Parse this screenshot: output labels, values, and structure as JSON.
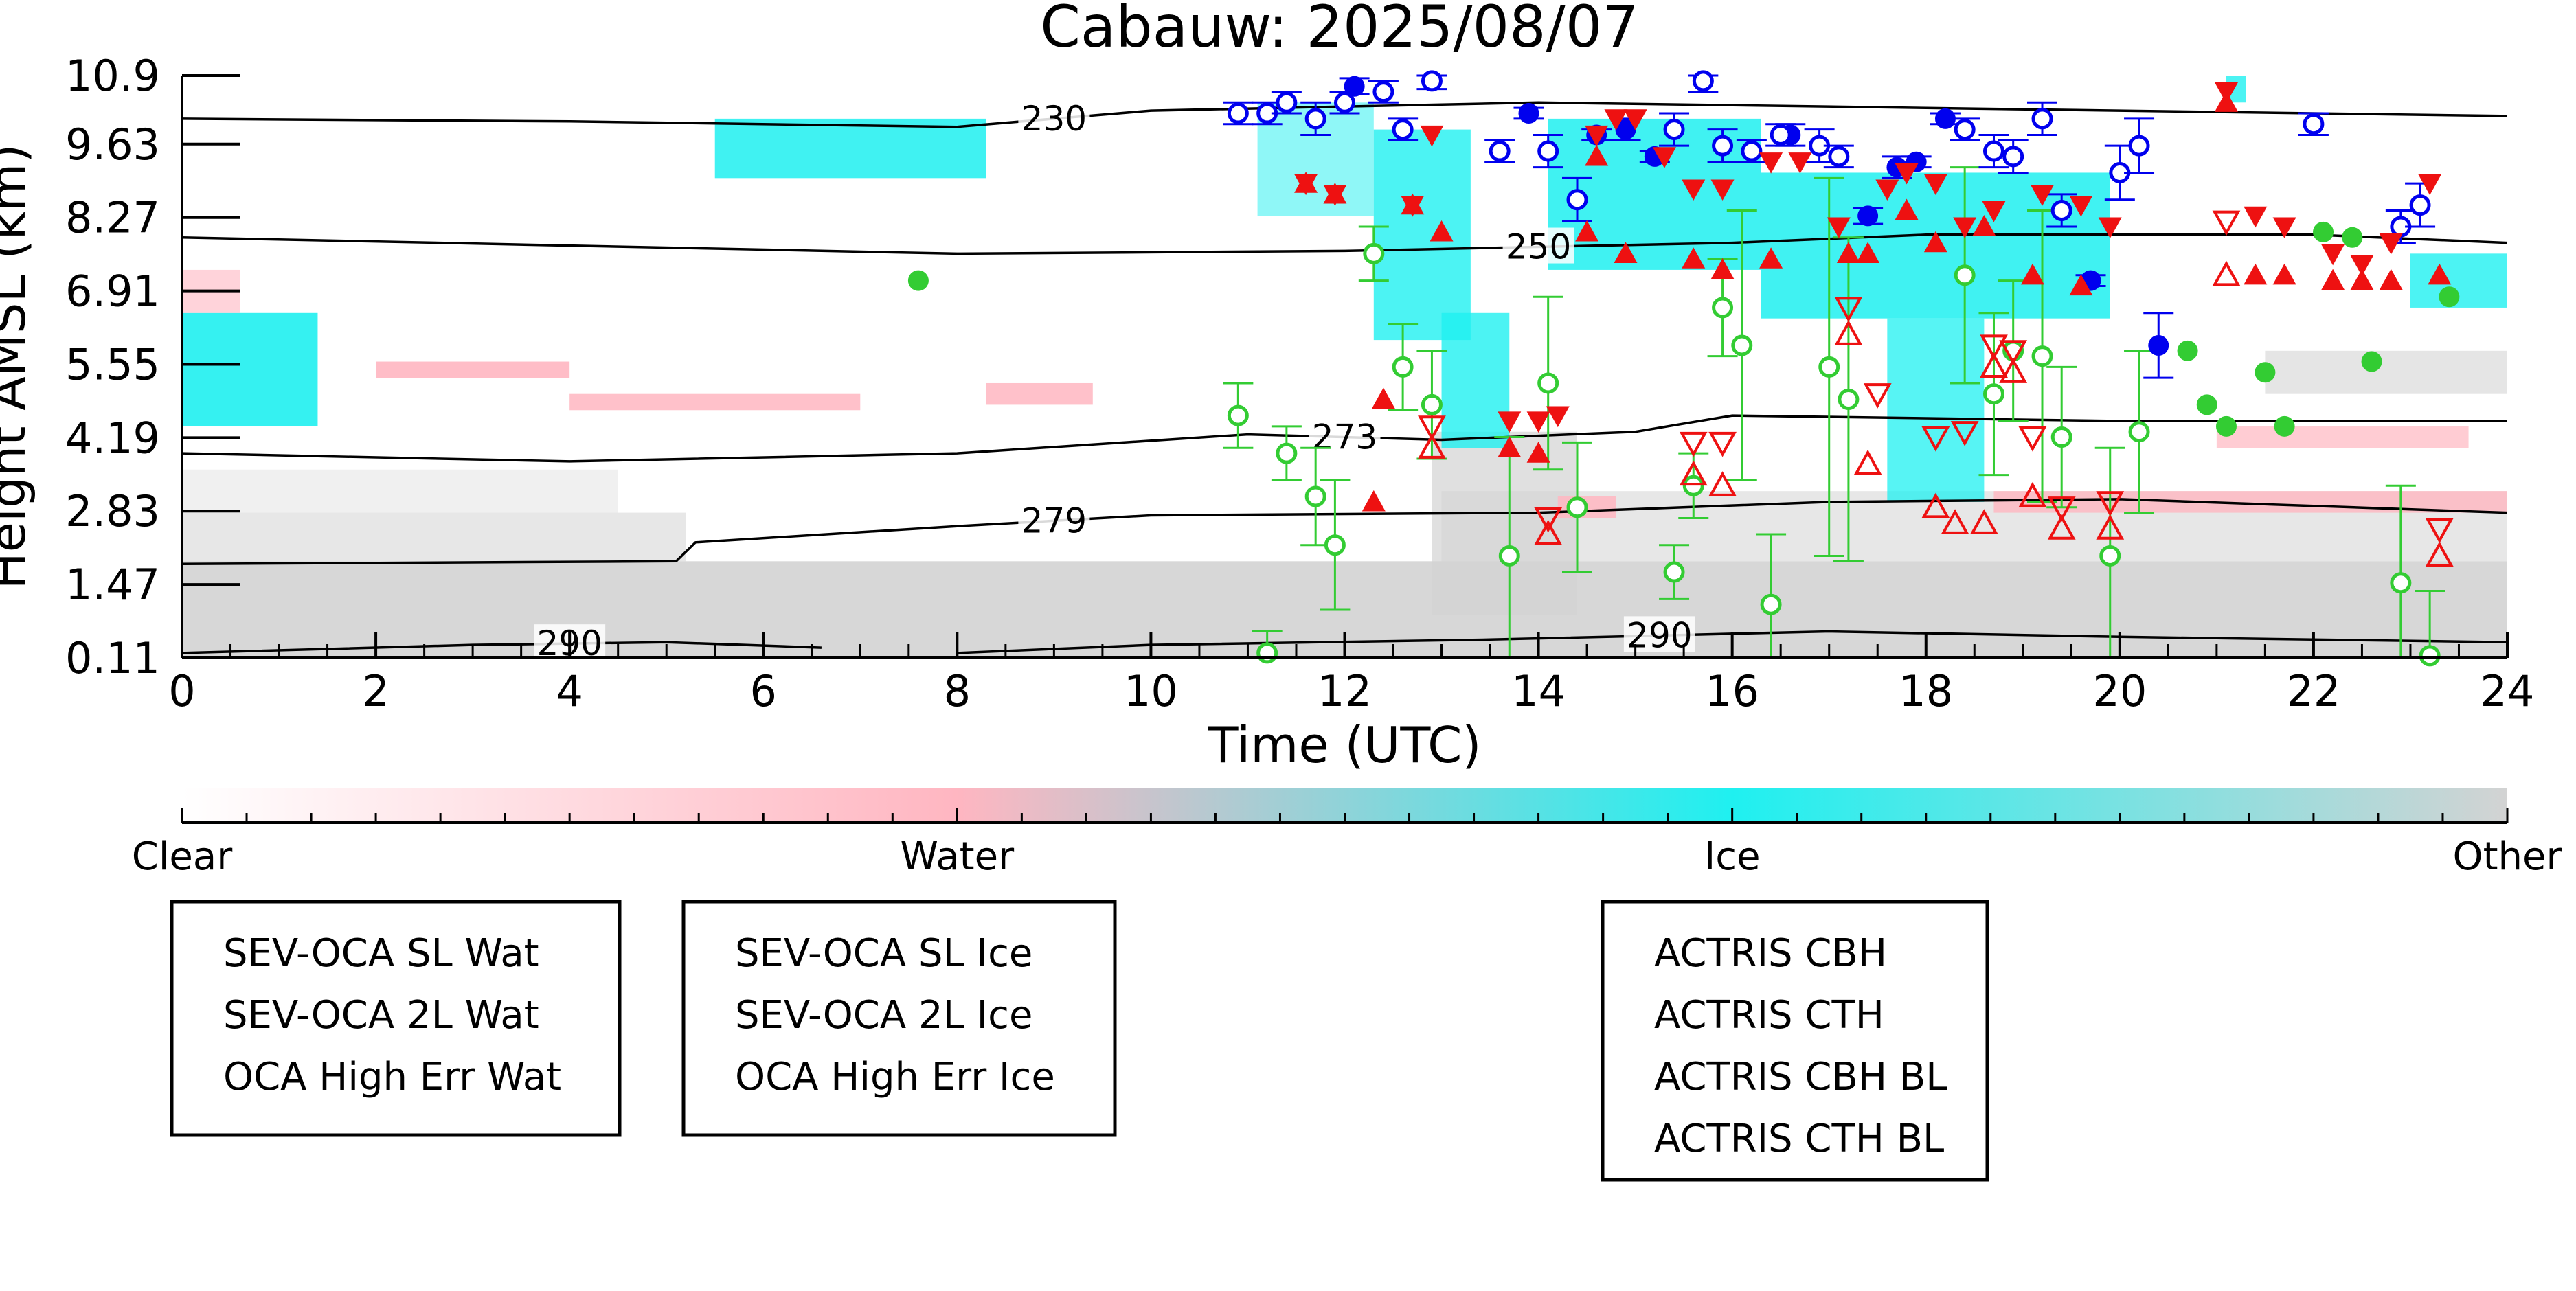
{
  "chart_data": {
    "type": "scatter",
    "title": "Cabauw: 2025/08/07",
    "xlabel": "Time (UTC)",
    "ylabel": "Height AMSL (km)",
    "xlim": [
      0,
      24
    ],
    "ylim": [
      0.11,
      10.9
    ],
    "x_ticks": [
      "0",
      "2",
      "4",
      "6",
      "8",
      "10",
      "12",
      "14",
      "16",
      "18",
      "20",
      "22",
      "24"
    ],
    "y_ticks": [
      "0.11",
      "1.47",
      "2.83",
      "4.19",
      "5.55",
      "6.91",
      "8.27",
      "9.63",
      "10.9"
    ],
    "grid": false,
    "background": "cloud classification curtain (clear / water / ice / other)",
    "colorbar": {
      "labels": [
        "Clear",
        "Water",
        "Ice",
        "Other"
      ],
      "colors": [
        "#ffffff",
        "#ffb6c1",
        "#1ff0f0",
        "#d3d3d3"
      ]
    },
    "contours": [
      {
        "label": "230",
        "points": [
          [
            0,
            10.1
          ],
          [
            4,
            10.05
          ],
          [
            8,
            9.95
          ],
          [
            10,
            10.25
          ],
          [
            14,
            10.4
          ],
          [
            18,
            10.3
          ],
          [
            24,
            10.15
          ]
        ]
      },
      {
        "label": "250",
        "points": [
          [
            0,
            7.9
          ],
          [
            4,
            7.75
          ],
          [
            8,
            7.6
          ],
          [
            12,
            7.65
          ],
          [
            16,
            7.8
          ],
          [
            18,
            7.95
          ],
          [
            22,
            7.95
          ],
          [
            24,
            7.8
          ]
        ]
      },
      {
        "label": "273",
        "points": [
          [
            0,
            3.9
          ],
          [
            4,
            3.75
          ],
          [
            8,
            3.9
          ],
          [
            11,
            4.25
          ],
          [
            13,
            4.15
          ],
          [
            15,
            4.3
          ],
          [
            16,
            4.6
          ],
          [
            20,
            4.5
          ],
          [
            24,
            4.5
          ]
        ]
      },
      {
        "label": "279",
        "points": [
          [
            0,
            1.85
          ],
          [
            5.1,
            1.9
          ],
          [
            5.3,
            2.25
          ],
          [
            8,
            2.55
          ],
          [
            10,
            2.75
          ],
          [
            14,
            2.8
          ],
          [
            17,
            3.0
          ],
          [
            20,
            3.05
          ],
          [
            24,
            2.8
          ]
        ]
      },
      {
        "label": "290",
        "points": [
          [
            0,
            0.2
          ],
          [
            3,
            0.35
          ],
          [
            5,
            0.4
          ],
          [
            6.6,
            0.3
          ]
        ]
      },
      {
        "label": "290",
        "points": [
          [
            8,
            0.2
          ],
          [
            10,
            0.35
          ],
          [
            13.5,
            0.45
          ],
          [
            17,
            0.6
          ],
          [
            20,
            0.5
          ],
          [
            24,
            0.4
          ]
        ]
      }
    ],
    "series": [
      {
        "name": "SEV-OCA SL Wat",
        "color": "#33cc33",
        "marker": "filled-circle",
        "points": [
          [
            7.6,
            7.1
          ],
          [
            20.7,
            5.8
          ],
          [
            20.9,
            4.8
          ],
          [
            21.1,
            4.4
          ],
          [
            21.5,
            5.4
          ],
          [
            21.7,
            4.4
          ],
          [
            22.1,
            8.0
          ],
          [
            22.4,
            7.9
          ],
          [
            22.6,
            5.6
          ],
          [
            23.4,
            6.8
          ]
        ]
      },
      {
        "name": "SEV-OCA 2L Wat",
        "color": "#33cc33",
        "marker": "open-circle",
        "points": [
          [
            10.9,
            4.6
          ],
          [
            11.2,
            0.2
          ],
          [
            11.4,
            3.9
          ],
          [
            11.7,
            3.1
          ],
          [
            11.9,
            2.2
          ],
          [
            12.3,
            7.6
          ],
          [
            12.6,
            5.5
          ],
          [
            12.9,
            4.8
          ],
          [
            13.7,
            2.0
          ],
          [
            14.1,
            5.2
          ],
          [
            14.4,
            2.9
          ],
          [
            15.4,
            1.7
          ],
          [
            15.6,
            3.3
          ],
          [
            15.9,
            6.6
          ],
          [
            16.1,
            5.9
          ],
          [
            16.4,
            1.1
          ],
          [
            17.0,
            5.5
          ],
          [
            17.2,
            4.9
          ],
          [
            18.4,
            7.2
          ],
          [
            18.7,
            5.0
          ],
          [
            18.9,
            5.8
          ],
          [
            19.2,
            5.7
          ],
          [
            19.4,
            4.2
          ],
          [
            19.9,
            2.0
          ],
          [
            20.2,
            4.3
          ],
          [
            22.9,
            1.5
          ],
          [
            23.2,
            0.15
          ]
        ],
        "errors": [
          0.6,
          0.4,
          0.5,
          0.9,
          1.2,
          0.5,
          0.8,
          1.0,
          2.2,
          1.6,
          1.2,
          0.5,
          0.6,
          0.9,
          2.5,
          1.3,
          3.5,
          3.0,
          2.0,
          1.5,
          1.3,
          2.7,
          1.3,
          2.0,
          1.5,
          1.8,
          1.2
        ]
      },
      {
        "name": "OCA High Err Wat",
        "color": "#33cc33",
        "marker": "x",
        "points": []
      },
      {
        "name": "SEV-OCA SL Ice",
        "color": "#0000ee",
        "marker": "filled-circle",
        "points": [
          [
            12.1,
            10.7
          ],
          [
            13.9,
            10.2
          ],
          [
            14.6,
            9.8
          ],
          [
            14.9,
            9.9
          ],
          [
            15.2,
            9.4
          ],
          [
            16.6,
            9.8
          ],
          [
            17.4,
            8.3
          ],
          [
            17.7,
            9.2
          ],
          [
            17.9,
            9.3
          ],
          [
            18.2,
            10.1
          ],
          [
            19.7,
            7.1
          ],
          [
            20.4,
            5.9
          ]
        ],
        "errors": [
          0.15,
          0.1,
          0.1,
          0.2,
          0.1,
          0.2,
          0.15,
          0.2,
          0.1,
          0.1,
          0.1,
          0.6
        ]
      },
      {
        "name": "SEV-OCA 2L Ice",
        "color": "#0000ee",
        "marker": "open-circle",
        "points": [
          [
            10.9,
            10.2
          ],
          [
            11.2,
            10.2
          ],
          [
            11.4,
            10.4
          ],
          [
            11.7,
            10.1
          ],
          [
            12.0,
            10.4
          ],
          [
            12.4,
            10.6
          ],
          [
            12.6,
            9.9
          ],
          [
            12.9,
            10.8
          ],
          [
            13.6,
            9.5
          ],
          [
            14.1,
            9.5
          ],
          [
            14.4,
            8.6
          ],
          [
            15.4,
            9.9
          ],
          [
            15.7,
            10.8
          ],
          [
            15.9,
            9.6
          ],
          [
            16.2,
            9.5
          ],
          [
            16.5,
            9.8
          ],
          [
            16.9,
            9.6
          ],
          [
            17.1,
            9.4
          ],
          [
            18.4,
            9.9
          ],
          [
            18.7,
            9.5
          ],
          [
            18.9,
            9.4
          ],
          [
            19.2,
            10.1
          ],
          [
            19.4,
            8.4
          ],
          [
            20.0,
            9.1
          ],
          [
            20.2,
            9.6
          ],
          [
            22.0,
            10.0
          ],
          [
            22.9,
            8.1
          ],
          [
            23.1,
            8.5
          ]
        ],
        "errors": [
          0.2,
          0.2,
          0.2,
          0.3,
          0.2,
          0.2,
          0.2,
          0.15,
          0.2,
          0.3,
          0.4,
          0.3,
          0.2,
          0.3,
          0.2,
          0.2,
          0.3,
          0.2,
          0.2,
          0.3,
          0.3,
          0.3,
          0.3,
          0.5,
          0.5,
          0.2,
          0.3,
          0.4
        ]
      },
      {
        "name": "OCA High Err Ice",
        "color": "#0000ee",
        "marker": "x",
        "points": []
      },
      {
        "name": "ACTRIS CBH",
        "color": "#ee1111",
        "marker": "filled-triangle-up",
        "points": [
          [
            11.6,
            8.9
          ],
          [
            11.9,
            8.7
          ],
          [
            12.4,
            4.9
          ],
          [
            12.3,
            3.0
          ],
          [
            12.7,
            8.5
          ],
          [
            13.0,
            8.0
          ],
          [
            13.7,
            4.0
          ],
          [
            14.0,
            3.9
          ],
          [
            14.5,
            8.0
          ],
          [
            14.6,
            9.4
          ],
          [
            14.9,
            7.6
          ],
          [
            15.6,
            7.5
          ],
          [
            15.9,
            7.3
          ],
          [
            16.4,
            7.5
          ],
          [
            17.2,
            7.6
          ],
          [
            17.4,
            7.6
          ],
          [
            17.8,
            8.4
          ],
          [
            18.1,
            7.8
          ],
          [
            18.6,
            8.1
          ],
          [
            19.1,
            7.2
          ],
          [
            19.6,
            7.0
          ],
          [
            21.1,
            10.4
          ],
          [
            21.4,
            7.2
          ],
          [
            21.7,
            7.2
          ],
          [
            22.2,
            7.1
          ],
          [
            22.5,
            7.1
          ],
          [
            22.8,
            7.1
          ],
          [
            23.3,
            7.2
          ]
        ]
      },
      {
        "name": "ACTRIS CTH",
        "color": "#ee1111",
        "marker": "filled-triangle-down",
        "points": [
          [
            11.6,
            8.9
          ],
          [
            11.9,
            8.7
          ],
          [
            12.7,
            8.5
          ],
          [
            12.9,
            9.8
          ],
          [
            13.7,
            4.5
          ],
          [
            14.0,
            4.5
          ],
          [
            14.2,
            4.6
          ],
          [
            14.6,
            9.8
          ],
          [
            14.8,
            10.1
          ],
          [
            15.0,
            10.1
          ],
          [
            15.3,
            9.4
          ],
          [
            15.6,
            8.8
          ],
          [
            15.9,
            8.8
          ],
          [
            16.4,
            9.3
          ],
          [
            16.7,
            9.3
          ],
          [
            17.1,
            8.1
          ],
          [
            17.6,
            8.8
          ],
          [
            17.8,
            9.1
          ],
          [
            18.1,
            8.9
          ],
          [
            18.4,
            8.1
          ],
          [
            18.7,
            8.4
          ],
          [
            19.2,
            8.7
          ],
          [
            19.6,
            8.5
          ],
          [
            19.9,
            8.1
          ],
          [
            21.1,
            10.6
          ],
          [
            21.4,
            8.3
          ],
          [
            21.7,
            8.1
          ],
          [
            22.2,
            7.6
          ],
          [
            22.5,
            7.4
          ],
          [
            22.8,
            7.8
          ],
          [
            23.2,
            8.9
          ]
        ]
      },
      {
        "name": "ACTRIS CBH BL",
        "color": "#ee1111",
        "marker": "open-triangle-up",
        "points": [
          [
            12.9,
            4.0
          ],
          [
            14.1,
            2.4
          ],
          [
            15.6,
            3.5
          ],
          [
            15.9,
            3.3
          ],
          [
            17.2,
            6.1
          ],
          [
            17.4,
            3.7
          ],
          [
            18.1,
            2.9
          ],
          [
            18.3,
            2.6
          ],
          [
            18.6,
            2.6
          ],
          [
            18.7,
            5.5
          ],
          [
            18.9,
            5.4
          ],
          [
            19.1,
            3.1
          ],
          [
            19.4,
            2.5
          ],
          [
            19.9,
            2.5
          ],
          [
            21.1,
            7.2
          ],
          [
            23.3,
            2.0
          ]
        ]
      },
      {
        "name": "ACTRIS CTH BL",
        "color": "#ee1111",
        "marker": "open-triangle-down",
        "points": [
          [
            12.9,
            4.4
          ],
          [
            14.1,
            2.7
          ],
          [
            15.6,
            4.1
          ],
          [
            15.9,
            4.1
          ],
          [
            17.2,
            6.6
          ],
          [
            17.5,
            5.0
          ],
          [
            18.1,
            4.2
          ],
          [
            18.4,
            4.3
          ],
          [
            18.7,
            5.9
          ],
          [
            18.9,
            5.8
          ],
          [
            19.1,
            4.2
          ],
          [
            19.4,
            2.9
          ],
          [
            19.9,
            3.0
          ],
          [
            21.1,
            8.2
          ],
          [
            23.3,
            2.5
          ]
        ]
      }
    ],
    "legends": [
      {
        "entries": [
          "SEV-OCA SL Wat",
          "SEV-OCA 2L Wat",
          "OCA High Err Wat"
        ]
      },
      {
        "entries": [
          "SEV-OCA SL Ice",
          "SEV-OCA 2L Ice",
          "OCA High Err Ice"
        ]
      },
      {
        "entries": [
          "ACTRIS CBH",
          "ACTRIS CTH",
          "ACTRIS CBH BL",
          "ACTRIS CTH BL"
        ]
      }
    ]
  }
}
